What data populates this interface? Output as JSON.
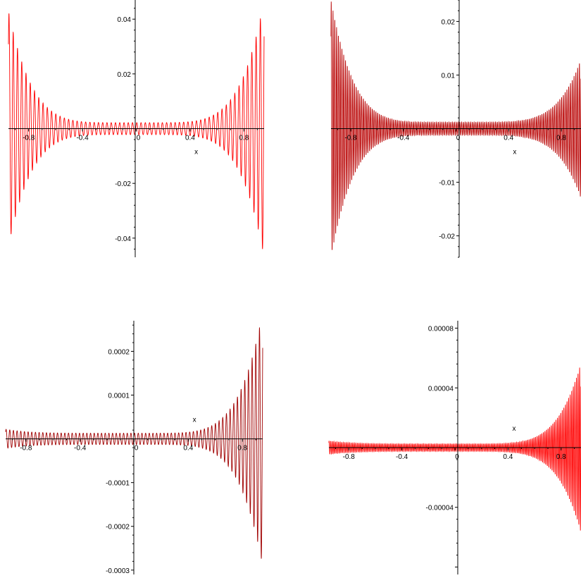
{
  "chart_data": [
    {
      "type": "line",
      "xlabel": "x",
      "ylabel": "",
      "xlim": [
        -0.95,
        0.95
      ],
      "ylim": [
        -0.047,
        0.047
      ],
      "color": "#ff0000",
      "x_ticks": [
        "-0.8",
        "-0.4",
        "0",
        "0.4",
        "0.8"
      ],
      "x_tick_values": [
        -0.8,
        -0.4,
        0,
        0.4,
        0.8
      ],
      "y_ticks": [
        "0.04",
        "0.02",
        "-0.02",
        "-0.04"
      ],
      "y_tick_values": [
        0.04,
        0.02,
        -0.02,
        -0.04
      ],
      "signal": {
        "oscillations": 60,
        "center_amplitude": 0.0022,
        "left_edge_amplitude": 0.043,
        "right_edge_amplitude": 0.047
      }
    },
    {
      "type": "line",
      "xlabel": "x",
      "ylabel": "",
      "xlim": [
        -0.95,
        0.95
      ],
      "ylim": [
        -0.024,
        0.024
      ],
      "color": "#b80000",
      "x_ticks": [
        "-0.8",
        "-0.4",
        "0",
        "0.4",
        "0.8"
      ],
      "x_tick_values": [
        -0.8,
        -0.4,
        0,
        0.4,
        0.8
      ],
      "y_ticks": [
        "0.02",
        "0.01",
        "-0.01",
        "-0.02"
      ],
      "y_tick_values": [
        0.02,
        0.01,
        -0.01,
        -0.02
      ],
      "signal": {
        "oscillations": 140,
        "center_amplitude": 0.0012,
        "left_edge_amplitude": 0.024,
        "right_edge_amplitude": 0.013
      }
    },
    {
      "type": "line",
      "xlabel": "x",
      "ylabel": "",
      "xlim": [
        -0.95,
        0.95
      ],
      "ylim": [
        -0.00031,
        0.00027
      ],
      "color": "#a00000",
      "x_ticks": [
        "-0.8",
        "-0.4",
        "0",
        "0.4",
        "0.8"
      ],
      "x_tick_values": [
        -0.8,
        -0.4,
        0,
        0.4,
        0.8
      ],
      "y_ticks": [
        "0.0002",
        "0.0001",
        "-0.0001",
        "-0.0002",
        "-0.0003"
      ],
      "y_tick_values": [
        0.0002,
        0.0001,
        -0.0001,
        -0.0002,
        -0.0003
      ],
      "signal": {
        "oscillations": 70,
        "center_amplitude": 1.3e-05,
        "left_edge_amplitude": 2.2e-05,
        "right_edge_amplitude": 0.00029
      }
    },
    {
      "type": "line",
      "xlabel": "x",
      "ylabel": "",
      "xlim": [
        -0.95,
        0.95
      ],
      "ylim": [
        -8.5e-05,
        8.5e-05
      ],
      "color": "#ff0000",
      "x_ticks": [
        "-0.8",
        "-0.4",
        "0",
        "0.4",
        "0.8"
      ],
      "x_tick_values": [
        -0.8,
        -0.4,
        0,
        0.4,
        0.8
      ],
      "y_ticks": [
        "0.00008",
        "0.00004",
        "-0.00004"
      ],
      "y_tick_values": [
        8e-05,
        4e-05,
        -4e-05
      ],
      "signal": {
        "oscillations": 160,
        "center_amplitude": 2.5e-06,
        "left_edge_amplitude": 4.5e-06,
        "right_edge_amplitude": 5.7e-05
      }
    }
  ]
}
